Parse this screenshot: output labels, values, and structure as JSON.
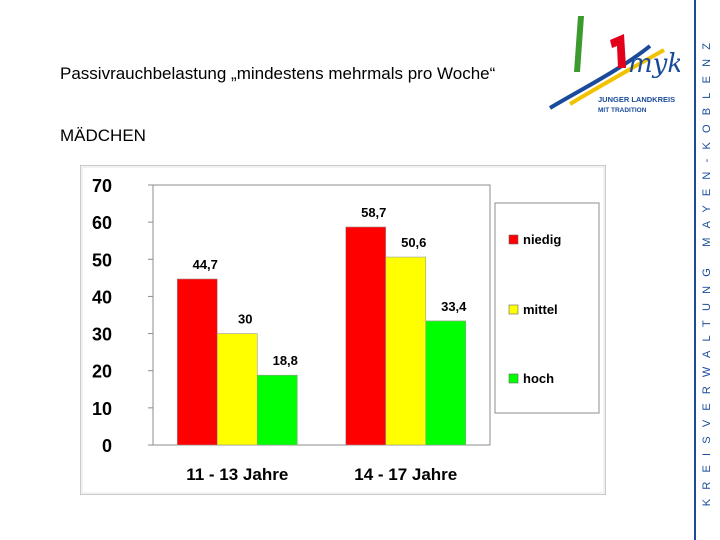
{
  "slide": {
    "title": "Passivrauchbelastung „mindestens mehrmals pro Woche“",
    "subtitle": "MÄDCHEN",
    "side_text": "KREISVERWALTUNG MAYEN-KOBLENZ",
    "logo_text_line1": "JUNGER LANDKREIS",
    "logo_text_line2": "MIT TRADITION"
  },
  "chart_data": {
    "type": "bar",
    "title": "",
    "xlabel": "",
    "ylabel": "",
    "categories": [
      "11 - 13 Jahre",
      "14 - 17 Jahre"
    ],
    "series": [
      {
        "name": "niedig",
        "color": "#ff0000",
        "values": [
          44.7,
          58.7
        ],
        "labels": [
          "44,7",
          "58,7"
        ]
      },
      {
        "name": "mittel",
        "color": "#ffff00",
        "values": [
          30,
          50.6
        ],
        "labels": [
          "30",
          "50,6"
        ]
      },
      {
        "name": "hoch",
        "color": "#00ff00",
        "values": [
          18.8,
          33.4
        ],
        "labels": [
          "18,8",
          "33,4"
        ]
      }
    ],
    "ylim": [
      0,
      70
    ],
    "yticks": [
      "0",
      "10",
      "20",
      "30",
      "40",
      "50",
      "60",
      "70"
    ],
    "grid": false,
    "legend": "right"
  }
}
